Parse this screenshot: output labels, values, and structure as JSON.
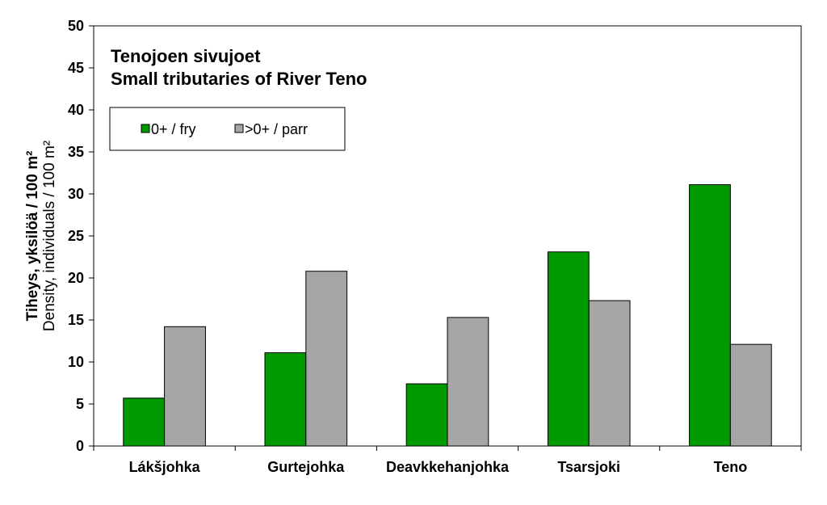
{
  "chart_data": {
    "type": "bar",
    "title_lines": [
      "Tenojoen sivujoet",
      "Small tributaries of River Teno"
    ],
    "ylabel_lines": [
      "Tiheys, yksilöä / 100 m²",
      "Density, individuals / 100 m²"
    ],
    "xlabel": "",
    "categories": [
      "Lákšjohka",
      "Gurtejohka",
      "Deavkkehanjohka",
      "Tsarsjoki",
      "Teno"
    ],
    "series": [
      {
        "name": "0+ / fry",
        "color": "#009900",
        "values": [
          5.7,
          11.1,
          7.4,
          23.1,
          31.1
        ]
      },
      {
        "name": ">0+ / parr",
        "color": "#a6a6a6",
        "values": [
          14.2,
          20.8,
          15.3,
          17.3,
          12.1
        ]
      }
    ],
    "ylim": [
      0,
      50
    ],
    "yticks": [
      0,
      5,
      10,
      15,
      20,
      25,
      30,
      35,
      40,
      45,
      50
    ],
    "grid": false,
    "legend_position": "top-left"
  }
}
